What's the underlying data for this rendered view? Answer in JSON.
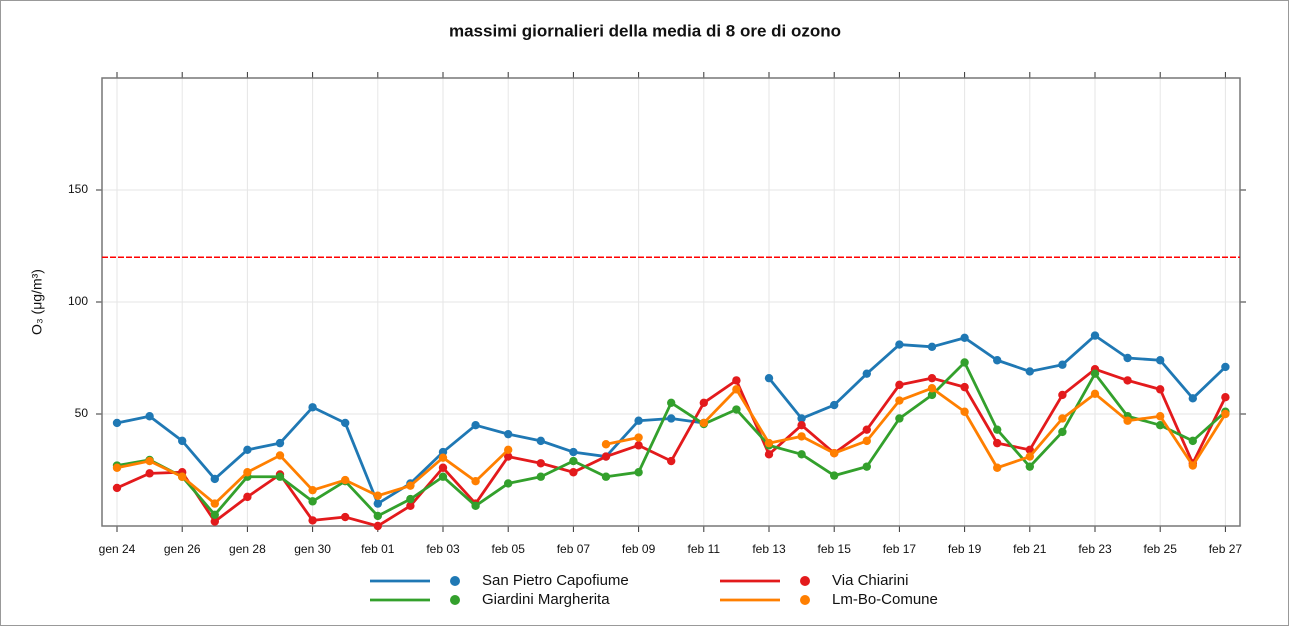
{
  "chart_data": {
    "type": "line",
    "title": "massimi giornalieri della media di 8 ore di ozono",
    "ylabel": "O₃ (μg/m³)",
    "categories": [
      "gen 24",
      null,
      "gen 26",
      null,
      "gen 28",
      null,
      "gen 30",
      null,
      "feb 01",
      null,
      "feb 03",
      null,
      "feb 05",
      null,
      "feb 07",
      null,
      "feb 09",
      null,
      "feb 11",
      null,
      "feb 13",
      null,
      "feb 15",
      null,
      "feb 17",
      null,
      "feb 19",
      null,
      "feb 21",
      null,
      "feb 23",
      null,
      "feb 25",
      null,
      "feb 27"
    ],
    "series": [
      {
        "name": "San Pietro Capofiume",
        "color": "#1f78b4",
        "values": [
          46,
          49,
          38,
          21,
          34,
          37,
          53,
          46,
          10,
          19,
          33,
          45,
          41,
          38,
          33,
          31,
          47,
          48,
          46,
          null,
          66,
          48,
          54,
          68,
          81,
          80,
          84,
          74,
          69,
          72,
          85,
          75,
          74,
          57,
          71
        ]
      },
      {
        "name": "Via Chiarini",
        "color": "#e31a1c",
        "values": [
          17,
          23.5,
          24,
          2,
          13,
          23,
          2.5,
          4,
          0,
          9,
          26,
          10,
          31,
          28,
          24,
          31,
          36,
          29,
          55,
          65,
          32,
          45,
          32.5,
          43,
          63,
          66,
          62,
          37,
          34,
          58.5,
          70,
          65,
          61,
          28,
          57.5
        ]
      },
      {
        "name": "Giardini Margherita",
        "color": "#33a02c",
        "values": [
          27,
          29.5,
          22,
          5,
          22,
          22,
          11,
          20,
          4.5,
          12,
          22,
          9,
          19,
          22,
          29,
          22,
          24,
          55,
          45.5,
          52,
          36,
          32,
          22.5,
          26.5,
          48,
          58.5,
          73,
          43,
          26.5,
          42,
          68,
          49,
          45,
          38,
          51
        ]
      },
      {
        "name": "Lm-Bo-Comune",
        "color": "#ff7f00",
        "values": [
          26,
          29,
          22,
          10,
          24,
          31.5,
          16,
          20.5,
          13.5,
          18,
          30.5,
          20,
          34,
          null,
          null,
          36.5,
          39.5,
          null,
          46,
          61,
          37,
          40,
          32.5,
          38,
          56,
          61.5,
          51,
          26,
          31,
          48,
          59,
          47,
          49,
          27,
          50
        ]
      }
    ],
    "ylim": [
      0,
      200
    ],
    "yticks": [
      50,
      100,
      150
    ],
    "grid": true,
    "threshold": 120,
    "threshold_color": "#ff0000"
  }
}
